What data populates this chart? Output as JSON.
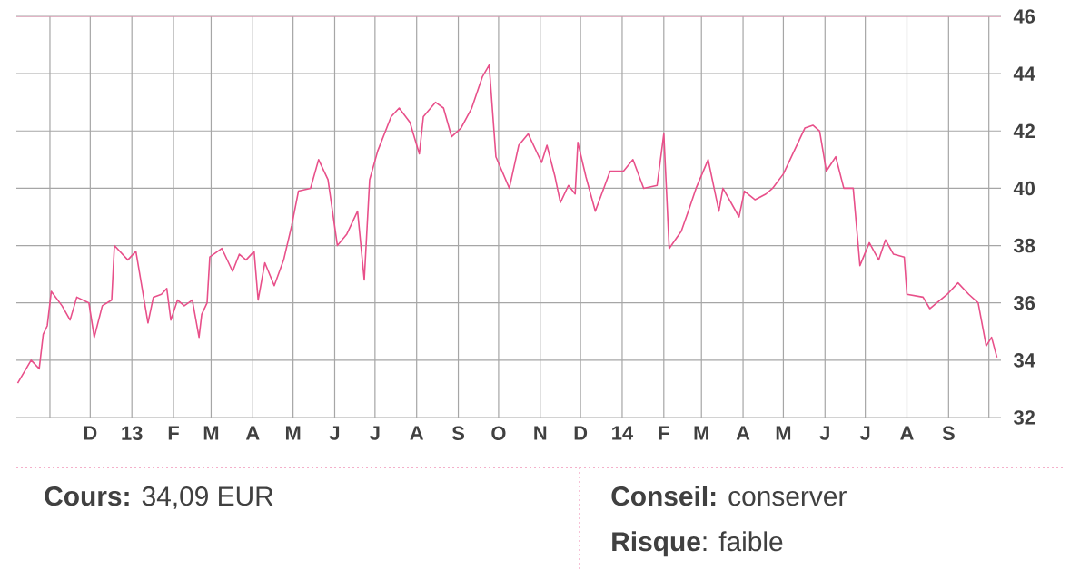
{
  "chart_data": {
    "type": "line",
    "color": "#e8508a",
    "x": [
      "2012-10-08",
      "2012-10-18",
      "2012-10-24",
      "2012-10-27",
      "2012-10-30",
      "2012-11-02",
      "2012-11-10",
      "2012-11-16",
      "2012-11-21",
      "2012-11-30",
      "2012-12-04",
      "2012-12-10",
      "2012-12-17",
      "2012-12-19",
      "2012-12-29",
      "2013-01-04",
      "2013-01-13",
      "2013-01-17",
      "2013-01-23",
      "2013-01-27",
      "2013-01-30",
      "2013-02-04",
      "2013-02-09",
      "2013-02-15",
      "2013-02-20",
      "2013-02-22",
      "2013-02-26",
      "2013-02-28",
      "2013-03-09",
      "2013-03-17",
      "2013-03-22",
      "2013-03-27",
      "2013-04-02",
      "2013-04-05",
      "2013-04-10",
      "2013-04-17",
      "2013-04-24",
      "2013-04-30",
      "2013-05-05",
      "2013-05-14",
      "2013-05-20",
      "2013-05-27",
      "2013-06-03",
      "2013-06-10",
      "2013-06-18",
      "2013-06-23",
      "2013-06-27",
      "2013-07-03",
      "2013-07-13",
      "2013-07-19",
      "2013-07-27",
      "2013-08-03",
      "2013-08-06",
      "2013-08-15",
      "2013-08-21",
      "2013-08-27",
      "2013-09-03",
      "2013-09-11",
      "2013-09-19",
      "2013-09-24",
      "2013-09-29",
      "2013-10-09",
      "2013-10-16",
      "2013-10-23",
      "2013-11-02",
      "2013-11-06",
      "2013-11-12",
      "2013-11-16",
      "2013-11-22",
      "2013-11-27",
      "2013-11-29",
      "2013-12-05",
      "2013-12-12",
      "2013-12-23",
      "2014-01-02",
      "2014-01-09",
      "2014-01-17",
      "2014-01-27",
      "2014-02-01",
      "2014-02-05",
      "2014-02-14",
      "2014-02-20",
      "2014-02-25",
      "2014-03-06",
      "2014-03-14",
      "2014-03-17",
      "2014-03-29",
      "2014-04-02",
      "2014-04-10",
      "2014-04-18",
      "2014-04-23",
      "2014-05-01",
      "2014-05-09",
      "2014-05-17",
      "2014-05-23",
      "2014-05-28",
      "2014-06-02",
      "2014-06-09",
      "2014-06-15",
      "2014-06-22",
      "2014-06-27",
      "2014-07-04",
      "2014-07-11",
      "2014-07-16",
      "2014-07-22",
      "2014-07-30",
      "2014-08-01",
      "2014-08-13",
      "2014-08-18",
      "2014-08-31",
      "2014-09-08",
      "2014-09-16",
      "2014-09-23",
      "2014-09-29",
      "2014-10-03",
      "2014-10-07"
    ],
    "values": [
      33.2,
      34.0,
      33.7,
      34.9,
      35.2,
      36.4,
      35.9,
      35.4,
      36.2,
      36.0,
      34.8,
      35.9,
      36.1,
      38.0,
      37.5,
      37.8,
      35.3,
      36.2,
      36.3,
      36.5,
      35.4,
      36.1,
      35.9,
      36.1,
      34.8,
      35.6,
      36.0,
      37.6,
      37.9,
      37.1,
      37.7,
      37.5,
      37.8,
      36.1,
      37.4,
      36.6,
      37.5,
      38.7,
      39.9,
      40.0,
      41.0,
      40.3,
      38.0,
      38.4,
      39.2,
      36.8,
      40.3,
      41.3,
      42.5,
      42.8,
      42.3,
      41.2,
      42.5,
      43.0,
      42.8,
      41.8,
      42.1,
      42.8,
      43.9,
      44.3,
      41.1,
      40.0,
      41.5,
      41.9,
      40.9,
      41.5,
      40.4,
      39.5,
      40.1,
      39.8,
      41.6,
      40.4,
      39.2,
      40.6,
      40.6,
      41.0,
      40.0,
      40.1,
      41.9,
      37.9,
      38.5,
      39.3,
      40.0,
      41.0,
      39.2,
      40.0,
      39.0,
      39.9,
      39.6,
      39.8,
      40.0,
      40.5,
      41.3,
      42.1,
      42.2,
      42.0,
      40.6,
      41.1,
      40.0,
      40.0,
      37.3,
      38.1,
      37.5,
      38.2,
      37.7,
      37.6,
      36.3,
      36.2,
      35.8,
      36.3,
      36.7,
      36.3,
      36.0,
      34.5,
      34.8,
      34.1
    ],
    "xlim": [
      "2012-10-07",
      "2014-10-10"
    ],
    "ylim": [
      32,
      46
    ],
    "xticks": [
      {
        "value": "2012-11-01",
        "label": null
      },
      {
        "value": "2012-12-01",
        "label": "D"
      },
      {
        "value": "2013-01-01",
        "label": "13"
      },
      {
        "value": "2013-02-01",
        "label": "F"
      },
      {
        "value": "2013-03-01",
        "label": "M"
      },
      {
        "value": "2013-04-01",
        "label": "A"
      },
      {
        "value": "2013-05-01",
        "label": "M"
      },
      {
        "value": "2013-06-01",
        "label": "J"
      },
      {
        "value": "2013-07-01",
        "label": "J"
      },
      {
        "value": "2013-08-01",
        "label": "A"
      },
      {
        "value": "2013-09-01",
        "label": "S"
      },
      {
        "value": "2013-10-01",
        "label": "O"
      },
      {
        "value": "2013-11-01",
        "label": "N"
      },
      {
        "value": "2013-12-01",
        "label": "D"
      },
      {
        "value": "2014-01-01",
        "label": "14"
      },
      {
        "value": "2014-02-01",
        "label": "F"
      },
      {
        "value": "2014-03-01",
        "label": "M"
      },
      {
        "value": "2014-04-01",
        "label": "A"
      },
      {
        "value": "2014-05-01",
        "label": "M"
      },
      {
        "value": "2014-06-01",
        "label": "J"
      },
      {
        "value": "2014-07-01",
        "label": "J"
      },
      {
        "value": "2014-08-01",
        "label": "A"
      },
      {
        "value": "2014-09-01",
        "label": "S"
      },
      {
        "value": "2014-10-01",
        "label": null
      }
    ],
    "yticks": [
      32,
      34,
      36,
      38,
      40,
      42,
      44,
      46
    ],
    "grid": true,
    "marker": "none",
    "line_style": "solid",
    "annotations": [
      "**Cours:** 34,09 EUR",
      "**Conseil:** conserver",
      "**Risque**: faible"
    ]
  }
}
